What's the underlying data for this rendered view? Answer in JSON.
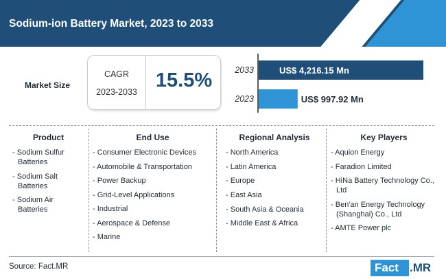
{
  "title": "Sodium-ion Battery Market, 2023 to 2033",
  "market_size_label": "Market Size",
  "cagr": {
    "label": "CAGR",
    "period": "2023-2033",
    "value": "15.5%"
  },
  "chart_data": {
    "type": "bar",
    "orientation": "horizontal",
    "categories": [
      "2033",
      "2023"
    ],
    "values": [
      4216.15,
      997.92
    ],
    "value_labels": [
      "US$ 4,216.15 Mn",
      "US$ 997.92 Mn"
    ],
    "colors": [
      "#1f4e79",
      "#2f94d6"
    ],
    "xlim": [
      0,
      4216.15
    ]
  },
  "columns": {
    "product": {
      "heading": "Product",
      "items": [
        "Sodium Sulfur Batteries",
        "Sodium Salt Batteries",
        "Sodium Air Batteries"
      ]
    },
    "end_use": {
      "heading": "End Use",
      "items": [
        "Consumer Electronic Devices",
        "Automobile & Transportation",
        "Power Backup",
        "Grid-Level Applications",
        "Industrial",
        "Aerospace & Defense",
        "Marine"
      ]
    },
    "regional": {
      "heading": "Regional Analysis",
      "items": [
        "North America",
        "Latin America",
        "Europe",
        "East Asia",
        "South Asia & Oceania",
        "Middle East & Africa"
      ]
    },
    "key_players": {
      "heading": "Key Players",
      "items": [
        "Aquion Energy",
        "Faradion Limited",
        "HiNa Battery Technology Co., Ltd",
        "Ben'an Energy Technology (Shanghai) Co., Ltd",
        "AMTE Power plc"
      ]
    }
  },
  "source": "Source: Fact.MR",
  "logo": {
    "part1": "Fact",
    "part2": ".MR"
  }
}
